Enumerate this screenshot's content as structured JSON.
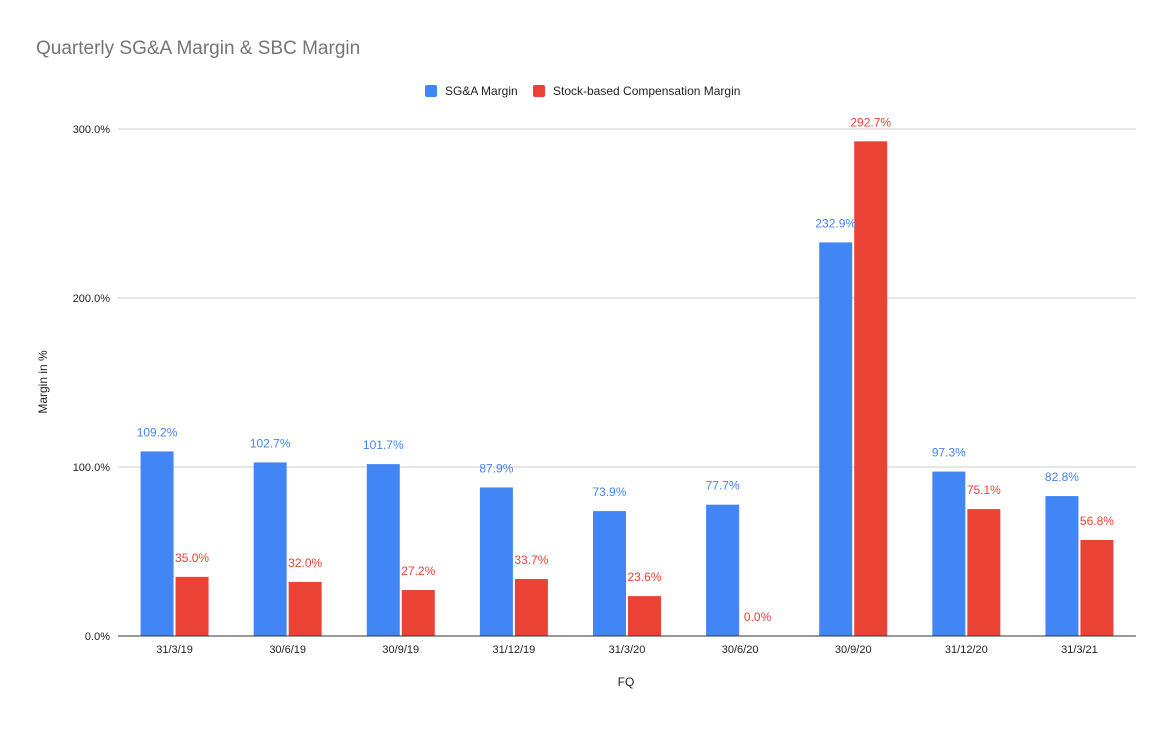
{
  "chart_data": {
    "type": "bar",
    "title": "Quarterly SG&A Margin & SBC Margin",
    "xlabel": "FQ",
    "ylabel": "Margin in %",
    "categories": [
      "31/3/19",
      "30/6/19",
      "30/9/19",
      "31/12/19",
      "31/3/20",
      "30/6/20",
      "30/9/20",
      "31/12/20",
      "31/3/21"
    ],
    "series": [
      {
        "name": "SG&A Margin",
        "color": "#4285f4",
        "values": [
          109.2,
          102.7,
          101.7,
          87.9,
          73.9,
          77.7,
          232.9,
          97.3,
          82.8
        ],
        "labels": [
          "109.2%",
          "102.7%",
          "101.7%",
          "87.9%",
          "73.9%",
          "77.7%",
          "232.9%",
          "97.3%",
          "82.8%"
        ]
      },
      {
        "name": "Stock-based Compensation Margin",
        "color": "#ea4335",
        "values": [
          35.0,
          32.0,
          27.2,
          33.7,
          23.6,
          0.0,
          292.7,
          75.1,
          56.8
        ],
        "labels": [
          "35.0%",
          "32.0%",
          "27.2%",
          "33.7%",
          "23.6%",
          "0.0%",
          "292.7%",
          "75.1%",
          "56.8%"
        ]
      }
    ],
    "ylim": [
      0,
      300
    ],
    "yticks": [
      0,
      100,
      200,
      300
    ],
    "ytick_labels": [
      "0.0%",
      "100.0%",
      "200.0%",
      "300.0%"
    ],
    "grid": true,
    "legend": "top-center"
  }
}
